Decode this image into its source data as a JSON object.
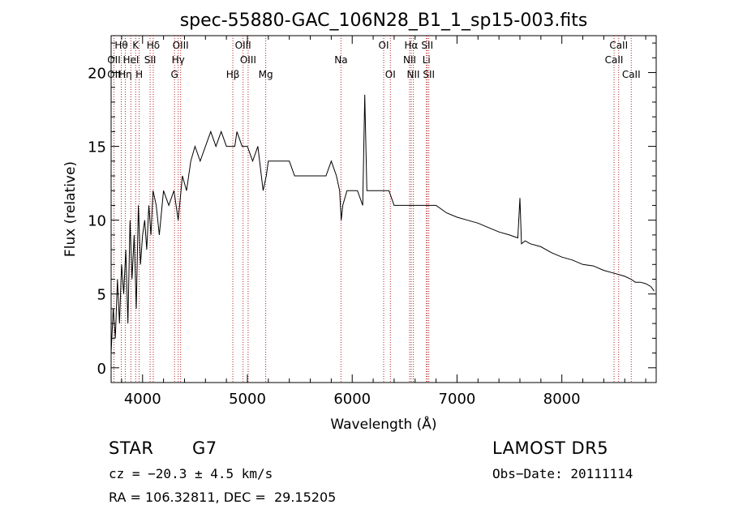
{
  "chart_data": {
    "type": "line",
    "title": "spec-55880-GAC_106N28_B1_1_sp15-003.fits",
    "xlabel": "Wavelength (Å)",
    "ylabel": "Flux (relative)",
    "xlim": [
      3700,
      8900
    ],
    "ylim": [
      -1,
      22.5
    ],
    "x_ticks": [
      4000,
      5000,
      6000,
      7000,
      8000
    ],
    "y_ticks": [
      0,
      5,
      10,
      15,
      20
    ],
    "grid": false,
    "series": [
      {
        "x": [
          3700,
          3720,
          3740,
          3760,
          3780,
          3800,
          3820,
          3840,
          3860,
          3880,
          3900,
          3920,
          3940,
          3960,
          3980,
          4000,
          4020,
          4040,
          4060,
          4080,
          4100,
          4130,
          4160,
          4200,
          4250,
          4300,
          4340,
          4380,
          4420,
          4460,
          4500,
          4550,
          4600,
          4650,
          4700,
          4750,
          4800,
          4850,
          4880,
          4900,
          4950,
          5000,
          5050,
          5100,
          5150,
          5180,
          5200,
          5250,
          5300,
          5350,
          5400,
          5450,
          5500,
          5550,
          5600,
          5650,
          5700,
          5750,
          5800,
          5850,
          5880,
          5895,
          5910,
          5950,
          6000,
          6050,
          6100,
          6120,
          6140,
          6200,
          6250,
          6300,
          6350,
          6400,
          6450,
          6500,
          6560,
          6600,
          6650,
          6700,
          6750,
          6800,
          6900,
          7000,
          7100,
          7200,
          7300,
          7400,
          7500,
          7580,
          7600,
          7615,
          7650,
          7700,
          7800,
          7900,
          8000,
          8100,
          8200,
          8300,
          8400,
          8500,
          8550,
          8600,
          8660,
          8700,
          8750,
          8800,
          8850,
          8880
        ],
        "y": [
          1,
          4,
          2,
          6,
          3,
          7,
          5,
          8,
          3,
          10,
          6,
          9,
          4,
          11,
          7,
          9,
          10,
          8,
          11,
          9,
          12,
          11,
          9,
          12,
          11,
          12,
          10,
          13,
          12,
          14,
          15,
          14,
          15,
          16,
          15,
          16,
          15,
          15,
          15,
          16,
          15,
          15,
          14,
          15,
          12,
          13,
          14,
          14,
          14,
          14,
          14,
          13,
          13,
          13,
          13,
          13,
          13,
          13,
          14,
          13,
          12,
          10,
          11,
          12,
          12,
          12,
          11,
          18.5,
          12,
          12,
          12,
          12,
          12,
          11,
          11,
          11,
          11,
          11,
          11,
          11,
          11,
          11,
          10.5,
          10.2,
          10,
          9.8,
          9.5,
          9.2,
          9,
          8.8,
          11.5,
          8.4,
          8.6,
          8.4,
          8.2,
          7.8,
          7.5,
          7.3,
          7,
          6.9,
          6.6,
          6.4,
          6.3,
          6.2,
          6,
          5.8,
          5.8,
          5.7,
          5.5,
          5.2
        ]
      }
    ],
    "line_labels": [
      {
        "name": "Hθ",
        "x": 3797,
        "row": 0,
        "pos": "above"
      },
      {
        "name": "K",
        "x": 3934,
        "row": 0,
        "pos": "above"
      },
      {
        "name": "Hδ",
        "x": 4102,
        "row": 0,
        "pos": "above"
      },
      {
        "name": "OIII",
        "x": 4363,
        "row": 0,
        "pos": "above"
      },
      {
        "name": "OIII",
        "x": 4959,
        "row": 0,
        "pos": "above"
      },
      {
        "name": "OI",
        "x": 6300,
        "row": 0,
        "pos": "above"
      },
      {
        "name": "Hα",
        "x": 6563,
        "row": 0,
        "pos": "above"
      },
      {
        "name": "SII",
        "x": 6716,
        "row": 0,
        "pos": "above"
      },
      {
        "name": "CaII",
        "x": 8542,
        "row": 0,
        "pos": "above"
      },
      {
        "name": "OII",
        "x": 3727,
        "row": 1,
        "pos": "above"
      },
      {
        "name": "HeI",
        "x": 3889,
        "row": 1,
        "pos": "above"
      },
      {
        "name": "SII",
        "x": 4072,
        "row": 1,
        "pos": "above"
      },
      {
        "name": "Hγ",
        "x": 4340,
        "row": 1,
        "pos": "above"
      },
      {
        "name": "OIII",
        "x": 5007,
        "row": 1,
        "pos": "above"
      },
      {
        "name": "NII",
        "x": 6548,
        "row": 1,
        "pos": "above"
      },
      {
        "name": "Li",
        "x": 6708,
        "row": 1,
        "pos": "above"
      },
      {
        "name": "CaII",
        "x": 8498,
        "row": 1,
        "pos": "above"
      },
      {
        "name": "OII",
        "x": 3727,
        "row": 2,
        "pos": "above"
      },
      {
        "name": "Hη",
        "x": 3835,
        "row": 2,
        "pos": "above"
      },
      {
        "name": "H",
        "x": 3968,
        "row": 2,
        "pos": "above"
      },
      {
        "name": "G",
        "x": 4305,
        "row": 2,
        "pos": "above"
      },
      {
        "name": "Hβ",
        "x": 4861,
        "row": 2,
        "pos": "above"
      },
      {
        "name": "Mg",
        "x": 5175,
        "row": 2,
        "pos": "above"
      },
      {
        "name": "CaII",
        "x": 8662,
        "row": 2,
        "pos": "above"
      },
      {
        "name": "Na",
        "x": 5893,
        "row": 1,
        "pos": "above"
      },
      {
        "name": "OI",
        "x": 6364,
        "row": 2,
        "pos": "above"
      },
      {
        "name": "NII",
        "x": 6583,
        "row": 2,
        "pos": "above"
      },
      {
        "name": "SII",
        "x": 6731,
        "row": 2,
        "pos": "above"
      }
    ],
    "line_markers_x": [
      3727,
      3797,
      3835,
      3889,
      3934,
      3968,
      4072,
      4102,
      4305,
      4340,
      4363,
      4861,
      4959,
      5007,
      5175,
      5893,
      6300,
      6364,
      6548,
      6563,
      6583,
      6708,
      6716,
      6731,
      8498,
      8542,
      8662
    ]
  },
  "info": {
    "object_class": "STAR",
    "subclass": "G7",
    "survey": "LAMOST DR5",
    "redshift_line": "cz = −20.3 ± 4.5 km/s",
    "obs_date_line": "Obs−Date: 20111114",
    "coords_line": "RA = 106.32811, DEC =  29.15205"
  },
  "colors": {
    "spectrum": "#000000",
    "marker": "#b22222",
    "axes": "#000000"
  }
}
